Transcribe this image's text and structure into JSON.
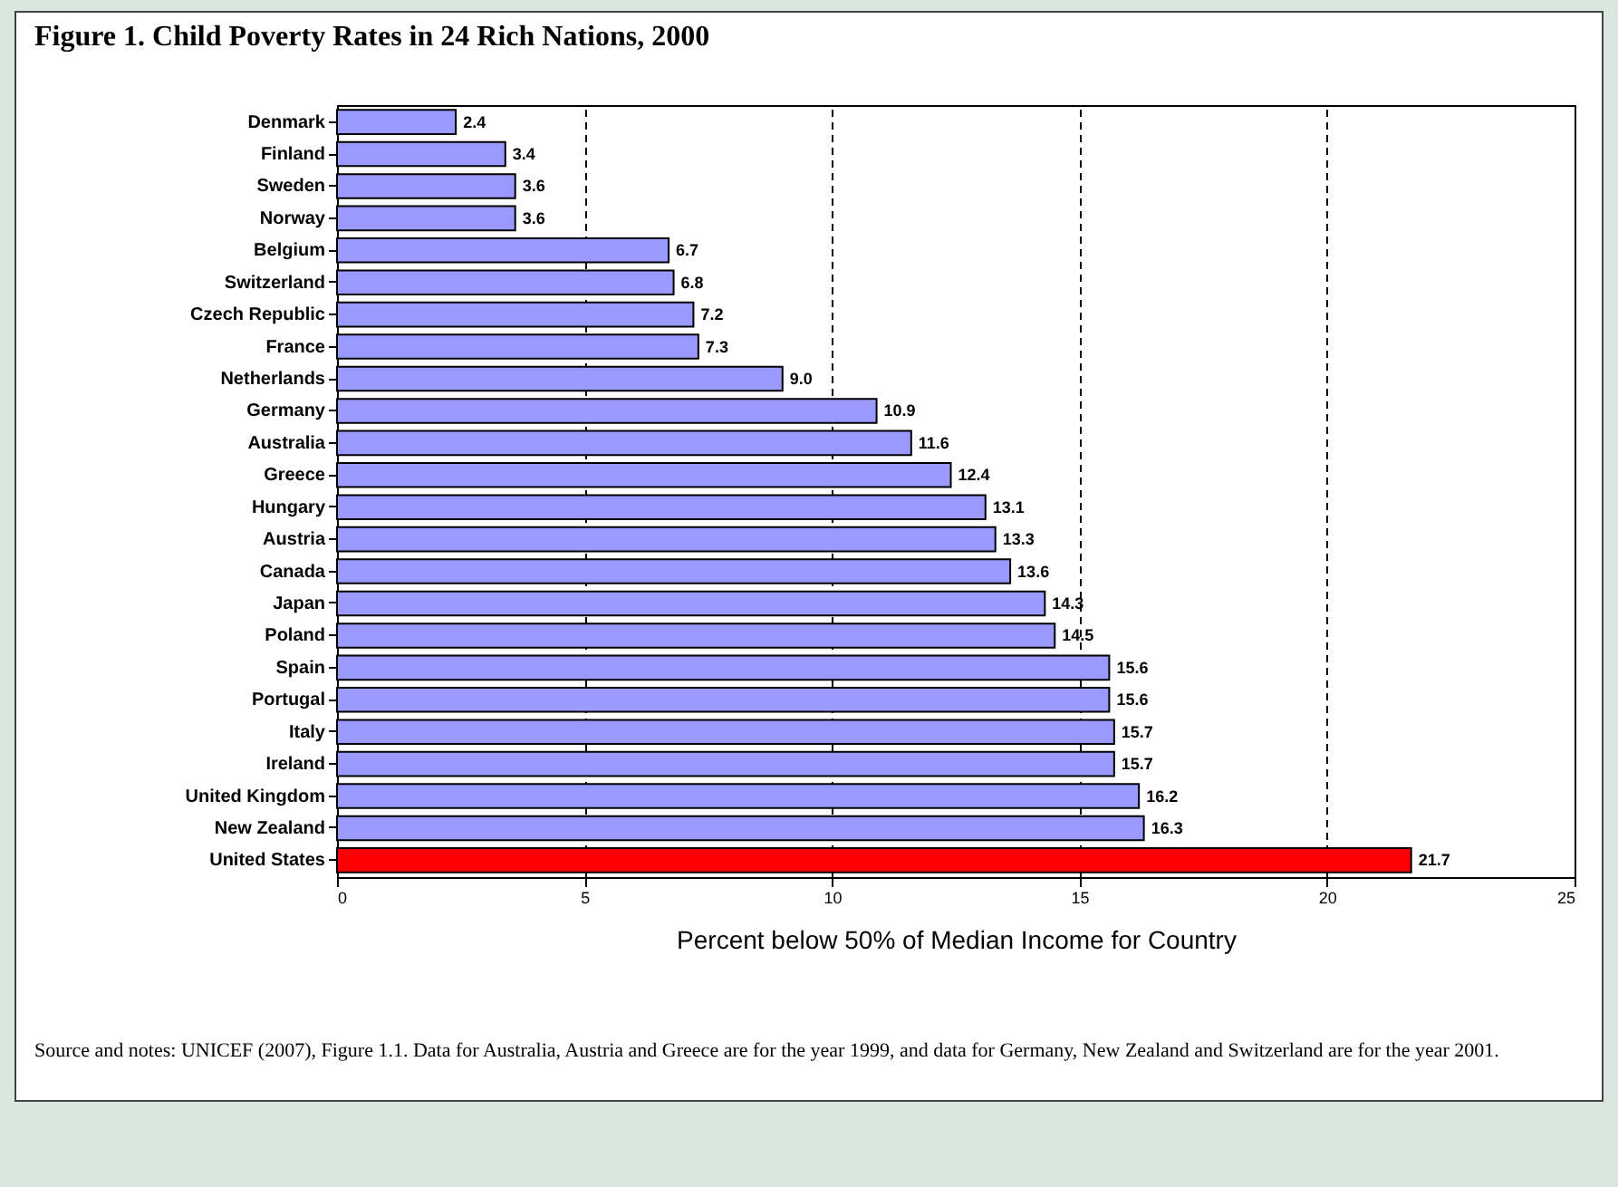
{
  "chart_data": {
    "type": "bar",
    "orientation": "horizontal",
    "title": "Figure 1. Child Poverty Rates in 24 Rich Nations, 2000",
    "xlabel": "Percent below 50% of Median Income for Country",
    "categories": [
      "Denmark",
      "Finland",
      "Sweden",
      "Norway",
      "Belgium",
      "Switzerland",
      "Czech Republic",
      "France",
      "Netherlands",
      "Germany",
      "Australia",
      "Greece",
      "Hungary",
      "Austria",
      "Canada",
      "Japan",
      "Poland",
      "Spain",
      "Portugal",
      "Italy",
      "Ireland",
      "United Kingdom",
      "New Zealand",
      "United States"
    ],
    "values": [
      2.4,
      3.4,
      3.6,
      3.6,
      6.7,
      6.8,
      7.2,
      7.3,
      9.0,
      10.9,
      11.6,
      12.4,
      13.1,
      13.3,
      13.6,
      14.3,
      14.5,
      15.6,
      15.6,
      15.7,
      15.7,
      16.2,
      16.3,
      21.7
    ],
    "value_labels": [
      "2.4",
      "3.4",
      "3.6",
      "3.6",
      "6.7",
      "6.8",
      "7.2",
      "7.3",
      "9.0",
      "10.9",
      "11.6",
      "12.4",
      "13.1",
      "13.3",
      "13.6",
      "14.3",
      "14.5",
      "15.6",
      "15.6",
      "15.7",
      "15.7",
      "16.2",
      "16.3",
      "21.7"
    ],
    "colors": [
      "#9999ff",
      "#9999ff",
      "#9999ff",
      "#9999ff",
      "#9999ff",
      "#9999ff",
      "#9999ff",
      "#9999ff",
      "#9999ff",
      "#9999ff",
      "#9999ff",
      "#9999ff",
      "#9999ff",
      "#9999ff",
      "#9999ff",
      "#9999ff",
      "#9999ff",
      "#9999ff",
      "#9999ff",
      "#9999ff",
      "#9999ff",
      "#9999ff",
      "#9999ff",
      "#ff0000"
    ],
    "xlim": [
      0,
      25
    ],
    "xticks": [
      0,
      5,
      10,
      15,
      20,
      25
    ],
    "grid": "x",
    "annotations": [
      "Source and notes: UNICEF (2007), Figure 1.1.  Data for Australia, Austria and Greece are for the year 1999, and data for Germany, New Zealand and Switzerland are for the year 2001."
    ]
  }
}
